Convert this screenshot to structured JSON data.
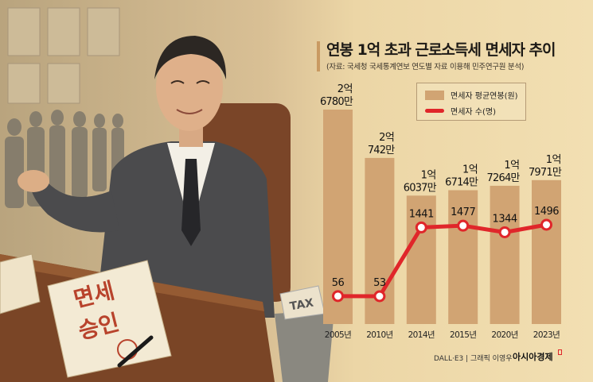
{
  "title": "연봉 1억 초과 근로소득세 면세자 추이",
  "subtitle": "(자료: 국세청 국세통계연보 연도별 자료 이용해 민주연구원 분석)",
  "illustration": {
    "document_line1": "면세",
    "document_line2": "승인",
    "trash_paper": "TAX"
  },
  "credit": "DALL·E3 | 그래픽 이영우",
  "logo": "아시아경제",
  "colors": {
    "bar": "#d1a473",
    "line": "#e0262a",
    "background": "#f0dcae"
  },
  "chart_data": {
    "type": "bar+line",
    "categories": [
      "2005년",
      "2010년",
      "2014년",
      "2015년",
      "2020년",
      "2023년"
    ],
    "series": [
      {
        "name": "면세자 평균연봉(원)",
        "type": "bar",
        "unit": "만원",
        "values": [
          26780,
          20742,
          16037,
          16714,
          17264,
          17971
        ],
        "labels": [
          [
            "2억",
            "6780만"
          ],
          [
            "2억",
            "742만"
          ],
          [
            "1억",
            "6037만"
          ],
          [
            "1억",
            "6714만"
          ],
          [
            "1억",
            "7264만"
          ],
          [
            "1억",
            "7971만"
          ]
        ]
      },
      {
        "name": "면세자 수(명)",
        "type": "line",
        "values": [
          56,
          53,
          1441,
          1477,
          1344,
          1496
        ],
        "labels": [
          "56",
          "53",
          "1441",
          "1477",
          "1344",
          "1496"
        ]
      }
    ],
    "legend": "top-right",
    "grid": false
  }
}
